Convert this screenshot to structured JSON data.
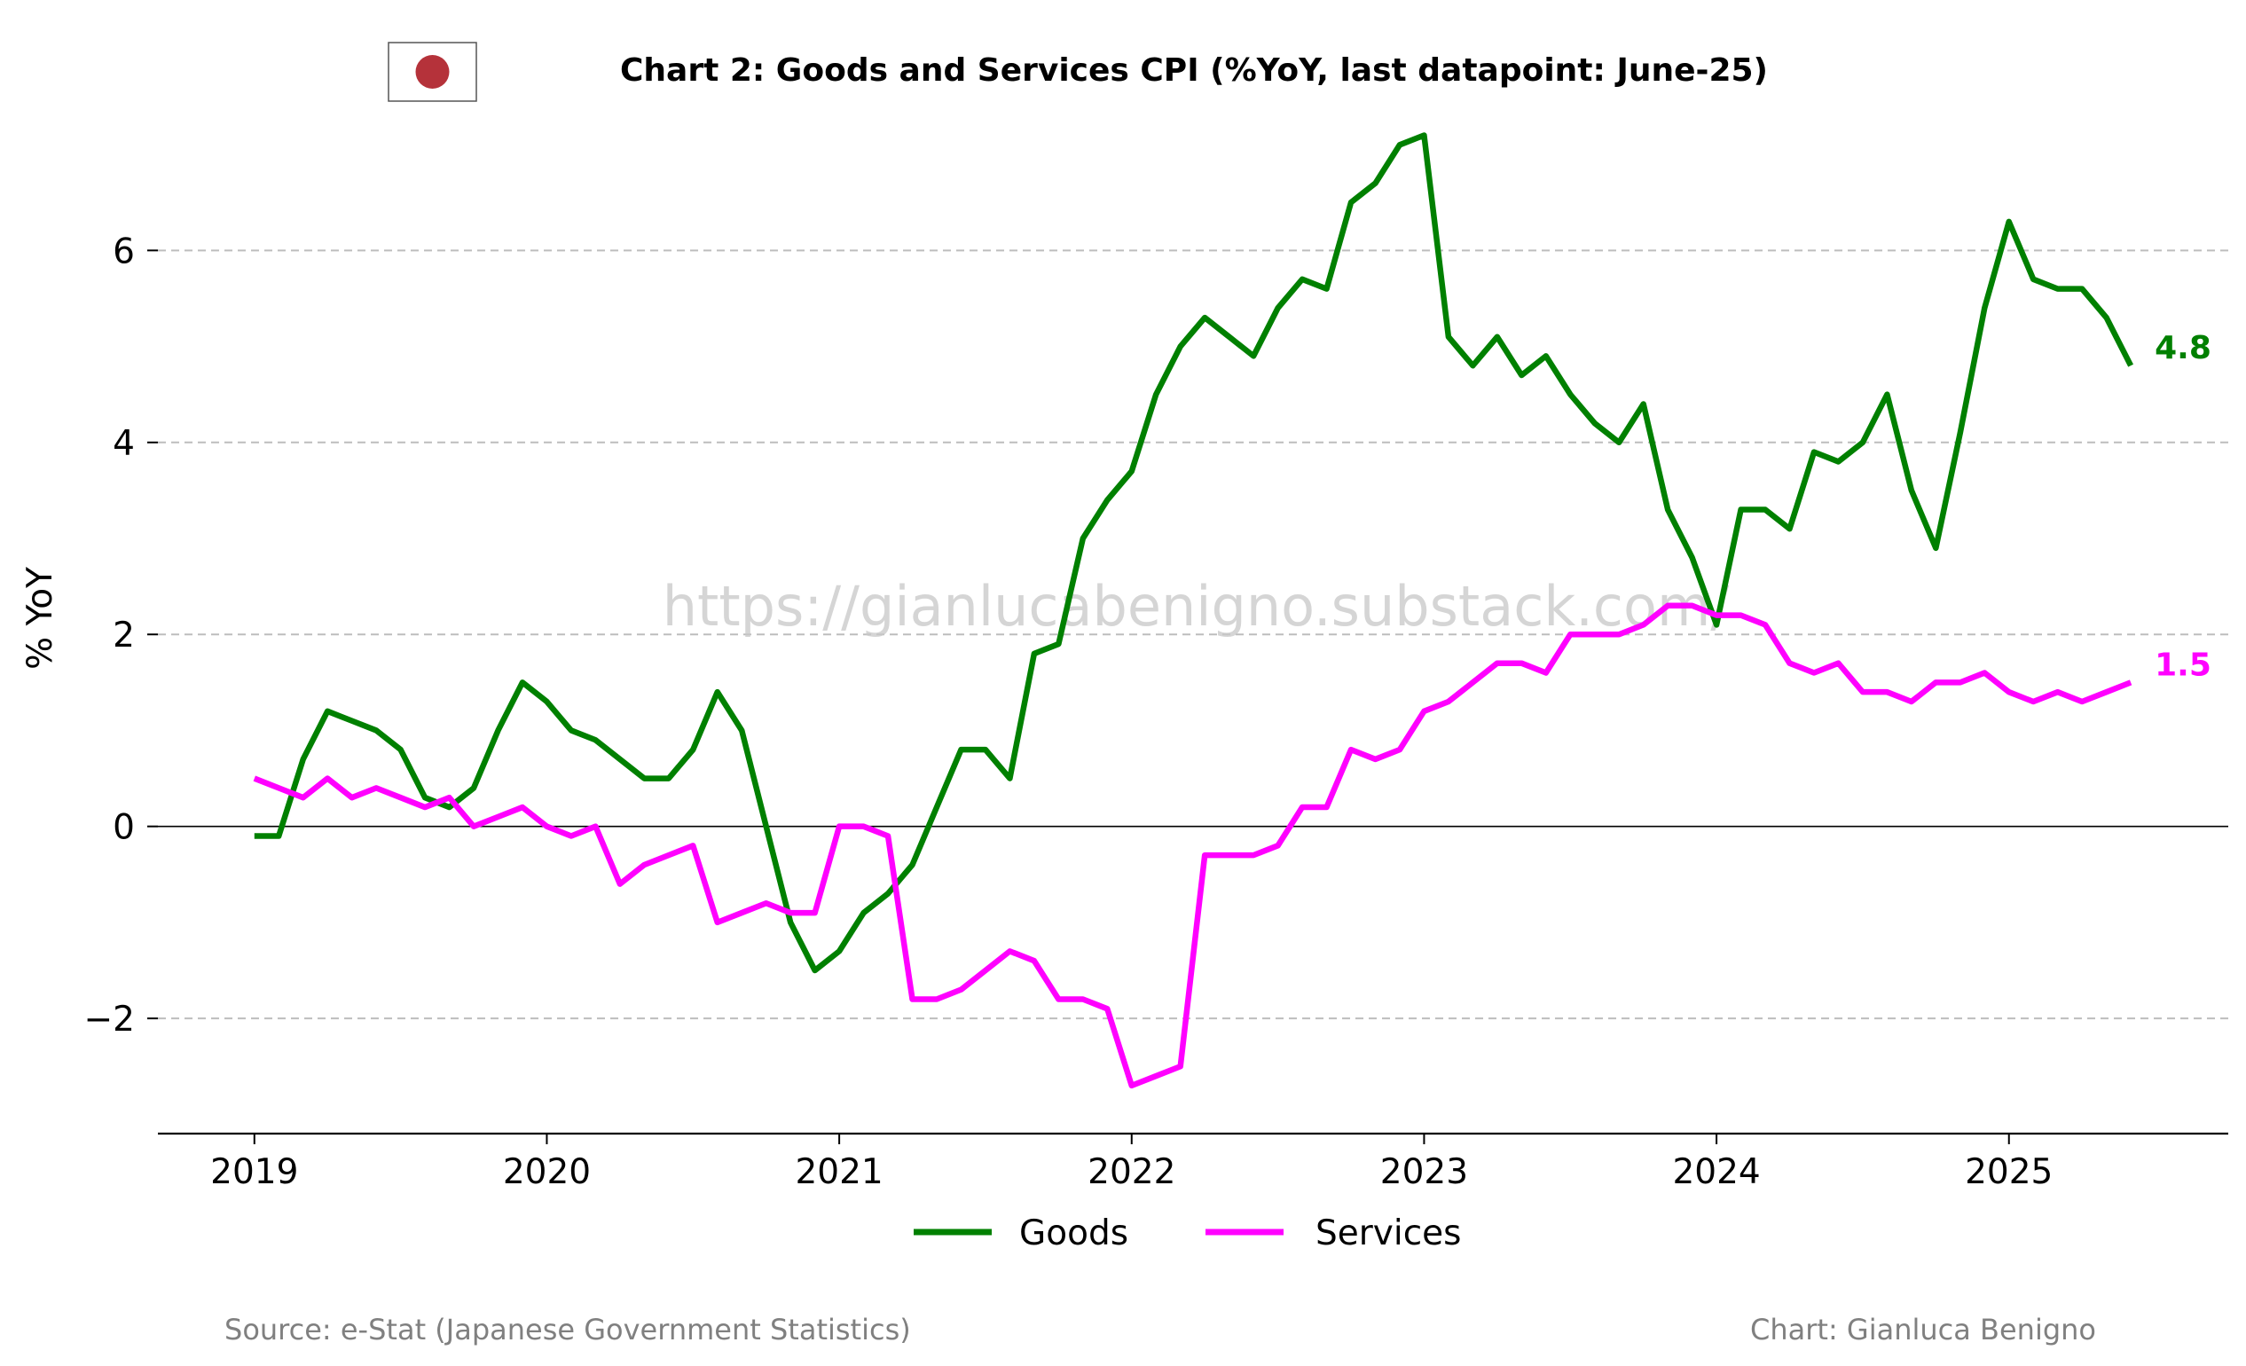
{
  "chart_data": {
    "type": "line",
    "title": "Chart 2: Goods and Services CPI (%YoY, last datapoint: June-25)",
    "ylabel": "% YoY",
    "xlabel": "",
    "ylim": [
      -3.2,
      7.5
    ],
    "xlim": [
      2018.67,
      2025.75
    ],
    "yticks": [
      -2,
      0,
      2,
      4,
      6
    ],
    "ytick_labels": [
      "−2",
      "0",
      "2",
      "4",
      "6"
    ],
    "xticks": [
      2019,
      2020,
      2021,
      2022,
      2023,
      2024,
      2025
    ],
    "xtick_labels": [
      "2019",
      "2020",
      "2021",
      "2022",
      "2023",
      "2024",
      "2025"
    ],
    "grid": "horizontal dashed",
    "legend_position": "bottom-center",
    "x_start": "2019-01",
    "x_end": "2025-06",
    "series": [
      {
        "name": "Goods",
        "color": "#008000",
        "end_label": "4.8",
        "values": [
          -0.1,
          -0.1,
          0.7,
          1.2,
          1.1,
          1.0,
          0.8,
          0.3,
          0.2,
          0.4,
          1.0,
          1.5,
          1.3,
          1.0,
          0.9,
          0.7,
          0.5,
          0.5,
          0.8,
          1.4,
          1.0,
          0.0,
          -1.0,
          -1.5,
          -1.3,
          -0.9,
          -0.7,
          -0.4,
          0.2,
          0.8,
          0.8,
          0.5,
          1.8,
          1.9,
          3.0,
          3.4,
          3.7,
          4.5,
          5.0,
          5.3,
          5.1,
          4.9,
          5.4,
          5.7,
          5.6,
          6.5,
          6.7,
          7.1,
          7.2,
          5.1,
          4.8,
          5.1,
          4.7,
          4.9,
          4.5,
          4.2,
          4.0,
          4.4,
          3.3,
          2.8,
          2.1,
          3.3,
          3.3,
          3.1,
          3.9,
          3.8,
          4.0,
          4.5,
          3.5,
          2.9,
          4.1,
          5.4,
          6.3,
          5.7,
          5.6,
          5.6,
          5.3,
          4.8
        ]
      },
      {
        "name": "Services",
        "color": "#ff00ff",
        "end_label": "1.5",
        "values": [
          0.5,
          0.4,
          0.3,
          0.5,
          0.3,
          0.4,
          0.3,
          0.2,
          0.3,
          0.0,
          0.1,
          0.2,
          0.0,
          -0.1,
          0.0,
          -0.6,
          -0.4,
          -0.3,
          -0.2,
          -1.0,
          -0.9,
          -0.8,
          -0.9,
          -0.9,
          0.0,
          0.0,
          -0.1,
          -1.8,
          -1.8,
          -1.7,
          -1.5,
          -1.3,
          -1.4,
          -1.8,
          -1.8,
          -1.9,
          -2.7,
          -2.6,
          -2.5,
          -0.3,
          -0.3,
          -0.3,
          -0.2,
          0.2,
          0.2,
          0.8,
          0.7,
          0.8,
          1.2,
          1.3,
          1.5,
          1.7,
          1.7,
          1.6,
          2.0,
          2.0,
          2.0,
          2.1,
          2.3,
          2.3,
          2.2,
          2.2,
          2.1,
          1.7,
          1.6,
          1.7,
          1.4,
          1.4,
          1.3,
          1.5,
          1.5,
          1.6,
          1.4,
          1.3,
          1.4,
          1.3,
          1.4,
          1.5
        ]
      }
    ]
  },
  "flag": {
    "name": "japan-flag",
    "circle_color": "#b5323a"
  },
  "watermark": "https://gianlucabenigno.substack.com/",
  "footer": {
    "source": "Source: e-Stat (Japanese Government Statistics)",
    "credit": "Chart: Gianluca Benigno"
  }
}
